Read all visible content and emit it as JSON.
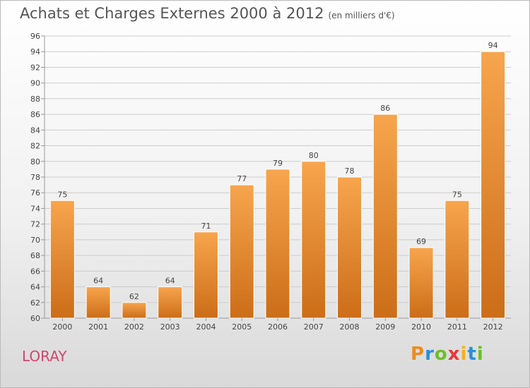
{
  "title": "Achats et Charges Externes 2000 à 2012",
  "unit": "(en milliers d'€)",
  "place": "LORAY",
  "logo": {
    "letters": [
      "P",
      "r",
      "o",
      "x",
      "i",
      "t",
      "i"
    ],
    "colors": [
      "#f08a1c",
      "#2a8fd6",
      "#6cbf2a",
      "#e8363d",
      "#f0b21c",
      "#2a8fd6",
      "#6cbf2a"
    ]
  },
  "colors": {
    "bar_top": "#f7a54e",
    "bar_bottom": "#cc6d18",
    "grid": "#cccccc",
    "axis": "#999999",
    "label": "#444444"
  },
  "chart_data": {
    "type": "bar",
    "categories": [
      "2000",
      "2001",
      "2002",
      "2003",
      "2004",
      "2005",
      "2006",
      "2007",
      "2008",
      "2009",
      "2010",
      "2011",
      "2012"
    ],
    "values": [
      75,
      64,
      62,
      64,
      71,
      77,
      79,
      80,
      78,
      86,
      69,
      75,
      94
    ],
    "ylim": [
      60,
      96
    ],
    "yticks": [
      60,
      62,
      64,
      66,
      68,
      70,
      72,
      74,
      76,
      78,
      80,
      82,
      84,
      86,
      88,
      90,
      92,
      94,
      96
    ],
    "grid": true
  }
}
